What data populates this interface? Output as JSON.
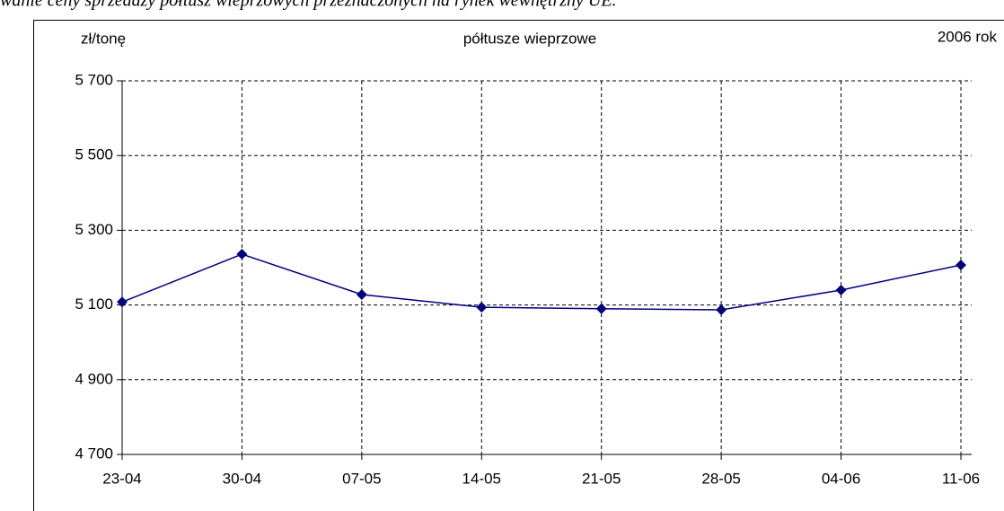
{
  "chart_data": {
    "type": "line",
    "caption": "wanie ceny sprzedaży półtusz wieprzowych przeznaczonych na rynek wewnętrzny UE.",
    "title": "półtusze wieprzowe",
    "y_label": "zł/tonę",
    "annotation": "2006 rok",
    "categories": [
      "23-04",
      "30-04",
      "07-05",
      "14-05",
      "21-05",
      "28-05",
      "04-06",
      "11-06"
    ],
    "series": [
      {
        "name": "półtusze wieprzowe",
        "color": "#000080",
        "values": [
          5108,
          5236,
          5128,
          5094,
          5090,
          5087,
          5140,
          5207
        ]
      }
    ],
    "ylim": [
      4700,
      5700
    ],
    "yticks": [
      {
        "value": 4700,
        "label": "4 700"
      },
      {
        "value": 4900,
        "label": "4 900"
      },
      {
        "value": 5100,
        "label": "5 100"
      },
      {
        "value": 5300,
        "label": "5 300"
      },
      {
        "value": 5500,
        "label": "5 500"
      },
      {
        "value": 5700,
        "label": "5 700"
      }
    ],
    "grid": true
  }
}
